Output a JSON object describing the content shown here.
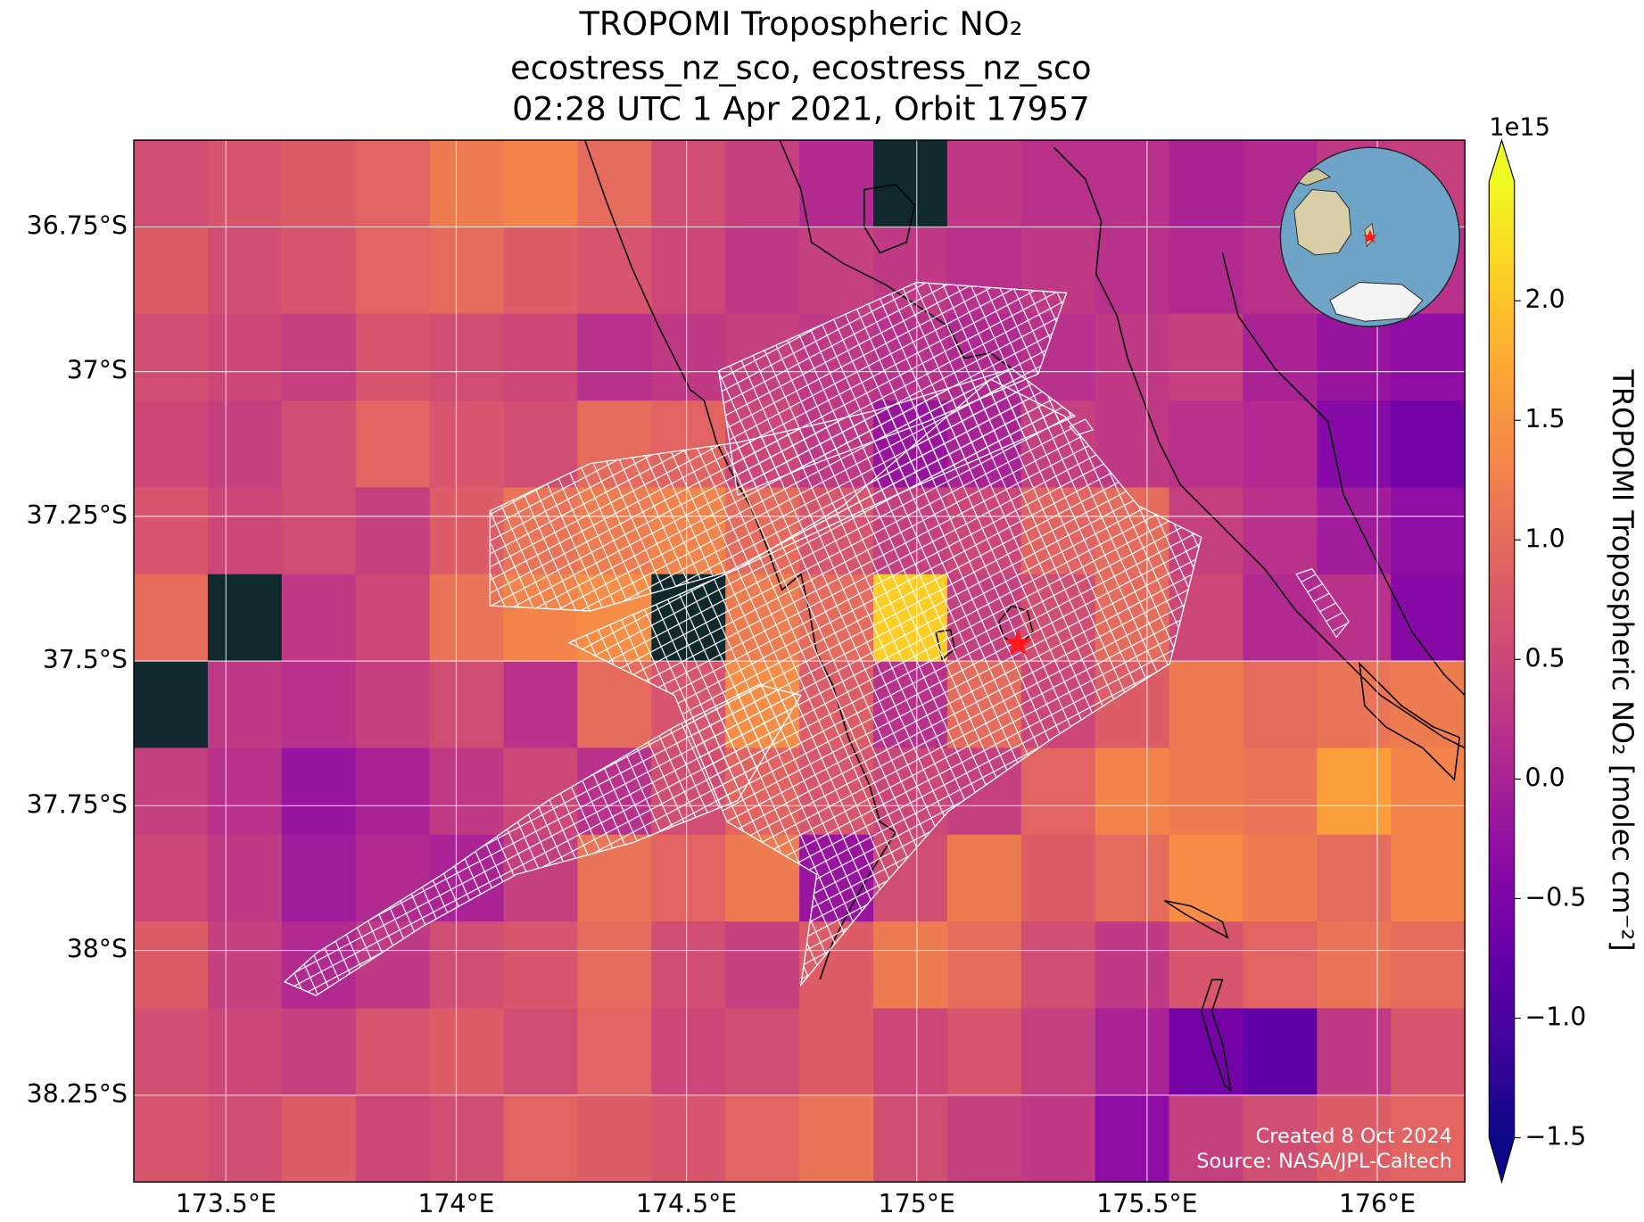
{
  "chart_data": {
    "type": "heatmap",
    "title": "TROPOMI Tropospheric NO₂",
    "subtitle": [
      "ecostress_nz_sco, ecostress_nz_sco",
      "02:28 UTC 1 Apr 2021, Orbit 17957"
    ],
    "xlim": [
      173.3,
      176.19
    ],
    "ylim": [
      -38.4,
      -36.6
    ],
    "xticks": [
      {
        "value": 173.5,
        "label": "173.5°E"
      },
      {
        "value": 174,
        "label": "174°E"
      },
      {
        "value": 174.5,
        "label": "174.5°E"
      },
      {
        "value": 175,
        "label": "175°E"
      },
      {
        "value": 175.5,
        "label": "175.5°E"
      },
      {
        "value": 176,
        "label": "176°E"
      }
    ],
    "yticks": [
      {
        "value": -36.75,
        "label": "36.75°S"
      },
      {
        "value": -37,
        "label": "37°S"
      },
      {
        "value": -37.25,
        "label": "37.25°S"
      },
      {
        "value": -37.5,
        "label": "37.5°S"
      },
      {
        "value": -37.75,
        "label": "37.75°S"
      },
      {
        "value": -38,
        "label": "38°S"
      },
      {
        "value": -38.25,
        "label": "38.25°S"
      }
    ],
    "grid": true,
    "colormap": "plasma",
    "nan_color": "#10292e",
    "z": [
      [
        0.6,
        0.7,
        0.8,
        0.9,
        1.2,
        1.3,
        1.0,
        0.6,
        0.4,
        0.1,
        null,
        0.3,
        0.2,
        0.2,
        0.0,
        0.1,
        0.3,
        0.4
      ],
      [
        0.8,
        0.6,
        0.7,
        0.9,
        1.0,
        0.8,
        0.7,
        0.5,
        0.3,
        0.4,
        0.3,
        0.2,
        0.3,
        0.2,
        0.1,
        0.2,
        0.3,
        0.2
      ],
      [
        0.6,
        0.5,
        0.4,
        0.7,
        0.6,
        0.5,
        0.2,
        0.3,
        0.4,
        0.3,
        0.2,
        0.1,
        0.2,
        0.3,
        0.4,
        0.0,
        -0.2,
        -0.3
      ],
      [
        0.5,
        0.4,
        0.6,
        0.9,
        0.7,
        0.6,
        1.0,
        0.9,
        0.5,
        0.3,
        -0.2,
        0.0,
        0.4,
        0.3,
        0.2,
        0.1,
        -0.4,
        -0.6
      ],
      [
        0.7,
        0.5,
        0.6,
        0.4,
        0.8,
        1.1,
        1.2,
        1.3,
        1.0,
        0.7,
        0.4,
        0.5,
        0.9,
        1.0,
        0.4,
        0.2,
        -0.1,
        -0.3
      ],
      [
        1.0,
        null,
        0.3,
        0.5,
        1.1,
        1.3,
        1.4,
        null,
        1.2,
        1.0,
        2.1,
        0.4,
        0.6,
        1.0,
        0.5,
        0.1,
        0.2,
        -0.4
      ],
      [
        null,
        0.3,
        0.2,
        0.4,
        0.6,
        0.2,
        1.0,
        0.7,
        1.4,
        0.8,
        0.2,
        1.0,
        0.5,
        0.8,
        1.2,
        1.0,
        1.1,
        1.2
      ],
      [
        0.4,
        0.2,
        -0.2,
        0.0,
        0.3,
        0.5,
        0.2,
        0.6,
        0.9,
        0.7,
        0.5,
        0.4,
        0.9,
        1.3,
        1.2,
        1.1,
        1.6,
        1.3
      ],
      [
        0.5,
        0.3,
        -0.1,
        0.1,
        0.0,
        0.4,
        1.1,
        0.9,
        1.2,
        -0.2,
        0.6,
        1.2,
        0.8,
        1.0,
        1.4,
        1.2,
        1.0,
        1.3
      ],
      [
        0.8,
        0.4,
        0.1,
        0.3,
        0.6,
        0.7,
        1.0,
        0.6,
        0.4,
        0.8,
        1.2,
        1.0,
        0.6,
        0.3,
        0.7,
        0.9,
        1.1,
        1.0
      ],
      [
        0.6,
        0.5,
        0.4,
        0.7,
        0.8,
        0.6,
        0.9,
        0.5,
        0.6,
        0.8,
        0.5,
        0.7,
        0.4,
        0.0,
        -0.6,
        -0.8,
        0.3,
        0.7
      ],
      [
        0.7,
        0.6,
        0.8,
        0.5,
        0.6,
        0.9,
        0.8,
        0.7,
        0.9,
        1.1,
        0.6,
        0.4,
        0.3,
        -0.3,
        0.4,
        0.6,
        0.8,
        0.9
      ]
    ],
    "clim": [
      -1.5,
      2.5
    ],
    "cbar_ticks": [
      {
        "value": -1.5,
        "label": "−1.5"
      },
      {
        "value": -1,
        "label": "−1.0"
      },
      {
        "value": -0.5,
        "label": "−0.5"
      },
      {
        "value": 0,
        "label": "0.0"
      },
      {
        "value": 0.5,
        "label": "0.5"
      },
      {
        "value": 1,
        "label": "1.0"
      },
      {
        "value": 1.5,
        "label": "1.5"
      },
      {
        "value": 2,
        "label": "2.0"
      }
    ],
    "cbar_offset": "1e15",
    "cbar_label": "TROPOMI Tropospheric NO₂ [molec cm⁻²]",
    "marker": {
      "x": 175.22,
      "y": -37.47,
      "color": "#ff1a1a"
    },
    "annotations": [
      "Created 8 Oct 2024",
      "Source: NASA/JPL-Caltech"
    ]
  }
}
